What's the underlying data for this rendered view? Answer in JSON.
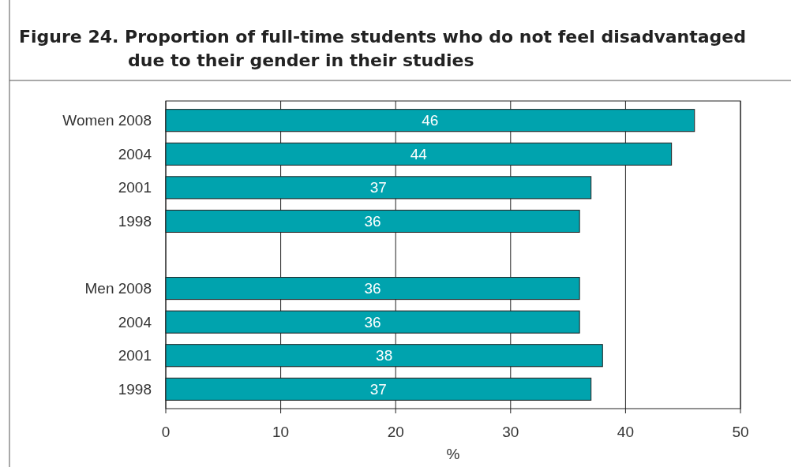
{
  "chart_data": {
    "type": "bar",
    "orientation": "horizontal",
    "title": "Figure 24.  Proportion of full-time students who do not feel disadvantaged due to their gender in their studies",
    "xlabel": "%",
    "categories": [
      "Women 2008",
      "2004",
      "2001",
      "1998",
      null,
      "Men 2008",
      "2004",
      "2001",
      "1998"
    ],
    "values": [
      46,
      44,
      37,
      36,
      null,
      36,
      36,
      38,
      37
    ],
    "color": "#00a3ae",
    "xlim": [
      0,
      50
    ],
    "xticks": [
      0,
      10,
      20,
      30,
      40,
      50
    ],
    "grid": "x",
    "data_labels": true
  }
}
